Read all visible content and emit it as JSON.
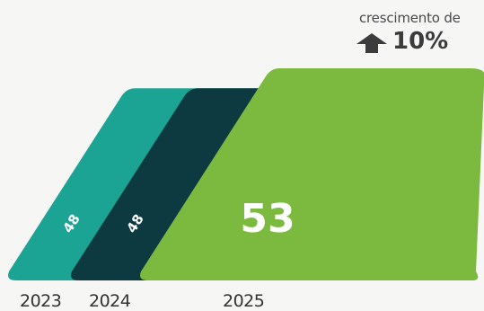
{
  "chart_data": {
    "type": "bar",
    "categories": [
      "2023",
      "2024",
      "2025"
    ],
    "values": [
      48,
      48,
      53
    ],
    "value_labels": [
      "48",
      "48",
      "53"
    ],
    "colors": [
      "#1ba394",
      "#0d3a40",
      "#7cba3f"
    ],
    "annotation": {
      "label": "crescimento de",
      "value": "10%",
      "icon": "arrow-up-icon"
    }
  }
}
